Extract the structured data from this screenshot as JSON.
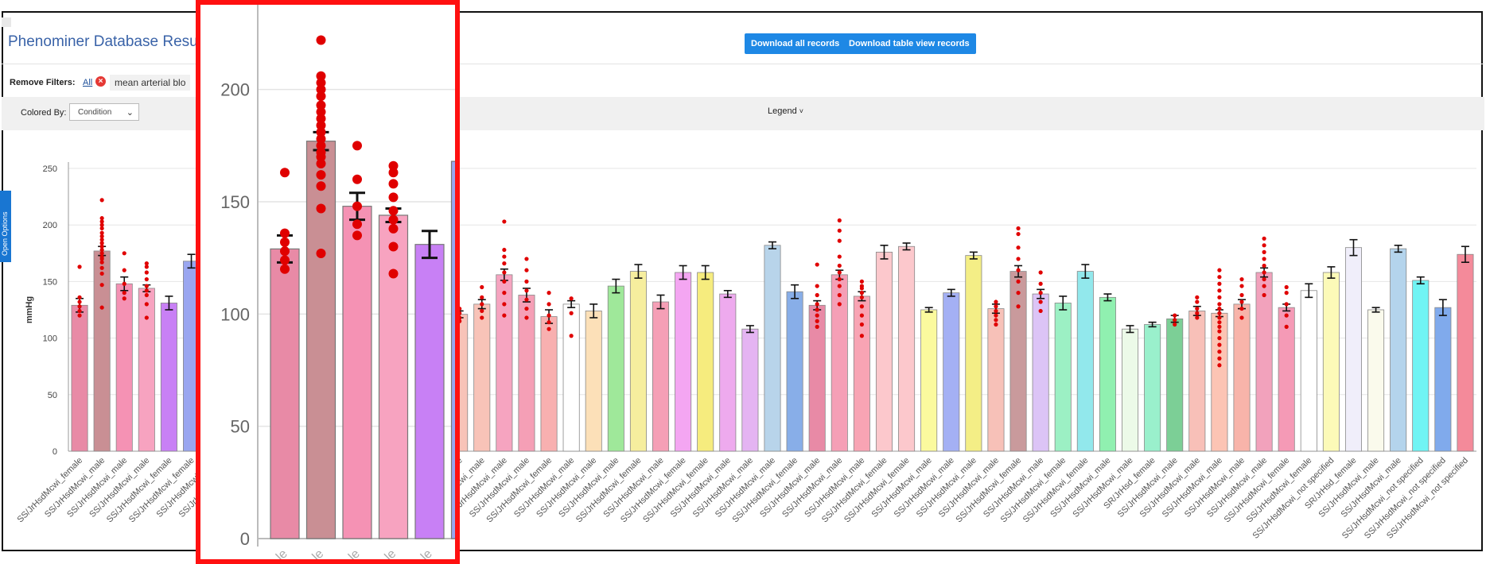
{
  "header": {
    "title": "Phenominer Database Result",
    "download_all_label": "Download all records",
    "download_table_label": "Download table view records"
  },
  "filters": {
    "label": "Remove Filters:",
    "all_label": "All",
    "remove_icon": "close-circle-icon",
    "chip_text": "mean arterial blo"
  },
  "toolbar": {
    "colored_by_label": "Colored By:",
    "colored_by_value": "Condition",
    "legend_label": "Legend",
    "legend_icon": "chevron-down-icon"
  },
  "side_tab": {
    "label": "Open Options"
  },
  "colors": {
    "accent": "#1e88e5",
    "highlight_border": "#ff1010",
    "point": "#e00000"
  },
  "chart_data": {
    "type": "bar",
    "ylabel": "mmHg",
    "ylim": [
      0,
      250
    ],
    "yticks": [
      0,
      50,
      100,
      150,
      200,
      250
    ],
    "bars": [
      {
        "label": "SS/JrHsdMcwi_female",
        "value": 129,
        "err": 6,
        "color": "#e88aa6",
        "points": [
          120,
          124,
          128,
          132,
          136,
          163
        ]
      },
      {
        "label": "SS/JrHsdMcwi_male",
        "value": 177,
        "err": 4,
        "color": "#c98f94",
        "points": [
          127,
          147,
          157,
          162,
          167,
          170,
          172,
          175,
          178,
          181,
          184,
          187,
          190,
          193,
          197,
          200,
          203,
          206,
          222
        ]
      },
      {
        "label": "SS/JrHsdMcwi_male",
        "value": 148,
        "err": 6,
        "color": "#f592b4",
        "points": [
          135,
          140,
          148,
          160,
          175
        ]
      },
      {
        "label": "SS/JrHsdMcwi_male",
        "value": 144,
        "err": 3,
        "color": "#f7a3c0",
        "points": [
          118,
          130,
          138,
          142,
          146,
          152,
          158,
          163,
          166
        ]
      },
      {
        "label": "SS/JrHsdMcwi_female",
        "value": 131,
        "err": 6,
        "color": "#c880f5",
        "points": []
      },
      {
        "label": "SS/JrHsdMcwi_female",
        "value": 168,
        "err": 6,
        "color": "#9aa6f0",
        "points": []
      },
      {
        "label": "SS/JrHsdMcwi_male",
        "value": 159,
        "err": 5,
        "color": "#5fa9a8",
        "points": []
      },
      {
        "label": "SS/JrHsdMcwi_male",
        "value": 120,
        "err": 3,
        "color": "#b8c8e8",
        "points": [
          117,
          121
        ]
      },
      {
        "label": "SS/JrHsdMcwi_male",
        "value": 125,
        "err": 3,
        "color": "#f7b7c5",
        "points": [
          118,
          122,
          130,
          137
        ]
      },
      {
        "label": "SS/JrHsdMcwi_female",
        "value": 135,
        "err": 4,
        "color": "#f8c0b8",
        "points": [
          130,
          136,
          140,
          156
        ]
      },
      {
        "label": "SS/JrHsdMcwi_male",
        "value": 131,
        "err": 3,
        "color": "#f2788f",
        "points": [
          102,
          110,
          120,
          128,
          135,
          140,
          144
        ]
      },
      {
        "label": "SR/Jr_male",
        "value": 177,
        "err": 2,
        "color": "#f8b08a",
        "points": []
      },
      {
        "label": "SS/JrHsdMcwi_male",
        "value": 113,
        "err": 2,
        "color": "#a8ecdc",
        "points": []
      },
      {
        "label": "SS/JrHsdMcwi_female",
        "value": 120,
        "err": 5,
        "color": "#f8c3b8",
        "points": [
          115,
          125,
          135
        ]
      },
      {
        "label": "SS/JrHsdMcwi_female",
        "value": 142,
        "err": 6,
        "color": "#e49ef2",
        "points": [
          120,
          128,
          136,
          144,
          152,
          158,
          165
        ]
      },
      {
        "label": "SS/JrHsdMcwi_female",
        "value": 174,
        "err": 6,
        "color": "#7be8a8",
        "points": []
      },
      {
        "label": "SS/JrHsdMcwi_male",
        "value": 172,
        "err": 3,
        "color": "#e9a4f2",
        "points": []
      },
      {
        "label": "SS/JrHsdMcwi_male",
        "value": 121,
        "err": 3,
        "color": "#f8c3b8",
        "points": [
          115,
          118,
          122,
          126
        ]
      },
      {
        "label": "SS/JrHsdMcwi_male",
        "value": 130,
        "err": 4,
        "color": "#f8c3b8",
        "points": [
          118,
          124,
          130,
          136,
          145
        ]
      },
      {
        "label": "SS/JrHsdMcwi_male",
        "value": 156,
        "err": 5,
        "color": "#f6a4c0",
        "points": [
          120,
          130,
          140,
          150,
          158,
          166,
          172,
          178,
          203
        ]
      },
      {
        "label": "SS/JrHsdMcwi_male",
        "value": 138,
        "err": 6,
        "color": "#f59fb6",
        "points": [
          118,
          126,
          134,
          142,
          150,
          160,
          170
        ]
      },
      {
        "label": "SS/JrHsdMcwi_female",
        "value": 119,
        "err": 6,
        "color": "#f8b0b0",
        "points": [
          108,
          114,
          120,
          130,
          140
        ]
      },
      {
        "label": "SS/JrHsdMcwi_male",
        "value": 130,
        "err": 3,
        "color": "#ffffff",
        "points": [
          102,
          122,
          135
        ]
      },
      {
        "label": "SS/JrHsdMcwi_male",
        "value": 124,
        "err": 6,
        "color": "#fce0b8",
        "points": []
      },
      {
        "label": "SS/JrHsdMcwi_male",
        "value": 146,
        "err": 6,
        "color": "#9fe89a",
        "points": []
      },
      {
        "label": "SS/JrHsdMcwi_female",
        "value": 159,
        "err": 6,
        "color": "#f6ee9e",
        "points": []
      },
      {
        "label": "SS/JrHsdMcwi_male",
        "value": 132,
        "err": 6,
        "color": "#f59fb6",
        "points": []
      },
      {
        "label": "SS/JrHsdMcwi_female",
        "value": 158,
        "err": 6,
        "color": "#f4a6f2",
        "points": []
      },
      {
        "label": "SS/JrHsdMcwi_female",
        "value": 158,
        "err": 6,
        "color": "#f6ec7e",
        "points": []
      },
      {
        "label": "SS/JrHsdMcwi_male",
        "value": 139,
        "err": 3,
        "color": "#eeaaee",
        "points": []
      },
      {
        "label": "SS/JrHsdMcwi_male",
        "value": 108,
        "err": 3,
        "color": "#e4b4f2",
        "points": []
      },
      {
        "label": "SS/JrHsdMcwi_male",
        "value": 182,
        "err": 3,
        "color": "#b8d4ea",
        "points": []
      },
      {
        "label": "SS/JrHsdMcwi_female",
        "value": 141,
        "err": 6,
        "color": "#88aee8",
        "points": []
      },
      {
        "label": "SS/JrHsdMcwi_male",
        "value": 129,
        "err": 4,
        "color": "#e88aa6",
        "points": [
          110,
          115,
          120,
          125,
          130,
          138,
          146,
          165
        ]
      },
      {
        "label": "SS/JrHsdMcwi_male",
        "value": 156,
        "err": 4,
        "color": "#f59fb6",
        "points": [
          130,
          138,
          146,
          152,
          158,
          164,
          172,
          186,
          195,
          204
        ]
      },
      {
        "label": "SS/JrHsdMcwi_male",
        "value": 137,
        "err": 4,
        "color": "#f8a4b4",
        "points": [
          102,
          112,
          120,
          128,
          136,
          140,
          144,
          146,
          150
        ]
      },
      {
        "label": "SS/JrHsdMcwi_female",
        "value": 176,
        "err": 6,
        "color": "#fcc8cc",
        "points": []
      },
      {
        "label": "SS/JrHsdMcwi_female",
        "value": 181,
        "err": 3,
        "color": "#fcc8cc",
        "points": []
      },
      {
        "label": "SS/JrHsdMcwi_male",
        "value": 125,
        "err": 2,
        "color": "#fbfa9e",
        "points": []
      },
      {
        "label": "SS/JrHsdMcwi_male",
        "value": 140,
        "err": 3,
        "color": "#a4b0f4",
        "points": []
      },
      {
        "label": "SS/JrHsdMcwi_male",
        "value": 173,
        "err": 3,
        "color": "#f4ee86",
        "points": []
      },
      {
        "label": "SS/JrHsdMcwi_male",
        "value": 126,
        "err": 4,
        "color": "#f7c1b8",
        "points": [
          112,
          116,
          120,
          124,
          128,
          132
        ]
      },
      {
        "label": "SS/JrHsdMcwi_female",
        "value": 159,
        "err": 5,
        "color": "#c99a9c",
        "points": [
          128,
          140,
          150,
          160,
          170,
          180,
          192,
          197
        ]
      },
      {
        "label": "SS/JrHsdMcwi_male",
        "value": 139,
        "err": 4,
        "color": "#dcc4f6",
        "points": [
          124,
          132,
          140,
          148,
          158
        ]
      },
      {
        "label": "SS/JrHsdMcwi_female",
        "value": 131,
        "err": 6,
        "color": "#9cf0c4",
        "points": []
      },
      {
        "label": "SS/JrHsdMcwi_female",
        "value": 159,
        "err": 6,
        "color": "#92e8ec",
        "points": []
      },
      {
        "label": "SS/JrHsdMcwi_male",
        "value": 136,
        "err": 3,
        "color": "#90f0b0",
        "points": []
      },
      {
        "label": "SS/JrHsdMcwi_male",
        "value": 108,
        "err": 3,
        "color": "#ecfae8",
        "points": []
      },
      {
        "label": "SR/JrHsd_female",
        "value": 112,
        "err": 2,
        "color": "#9af0cc",
        "points": []
      },
      {
        "label": "SS/JrHsdMcwi_male",
        "value": 117,
        "err": 3,
        "color": "#7ccf96",
        "points": [
          112,
          116,
          120
        ]
      },
      {
        "label": "SS/JrHsdMcwi_male",
        "value": 124,
        "err": 4,
        "color": "#f8c0b8",
        "points": [
          118,
          122,
          126,
          132,
          136
        ]
      },
      {
        "label": "SS/JrHsdMcwi_male",
        "value": 122,
        "err": 3,
        "color": "#fcc4b4",
        "points": [
          76,
          82,
          88,
          94,
          100,
          106,
          110,
          114,
          118,
          122,
          126,
          130,
          136,
          142,
          148,
          154,
          160
        ]
      },
      {
        "label": "SS/JrHsdMcwi_male",
        "value": 130,
        "err": 4,
        "color": "#f8b4aa",
        "points": [
          118,
          126,
          132,
          138,
          146,
          152
        ]
      },
      {
        "label": "SS/JrHsdMcwi_male",
        "value": 158,
        "err": 4,
        "color": "#f2a2bc",
        "points": [
          138,
          146,
          152,
          158,
          164,
          170,
          176,
          182,
          188
        ]
      },
      {
        "label": "SS/JrHsdMcwi_female",
        "value": 127,
        "err": 3,
        "color": "#f59ab6",
        "points": [
          110,
          120,
          130,
          140,
          145
        ]
      },
      {
        "label": "SS/JrHsdMcwi_female",
        "value": 142,
        "err": 6,
        "color": "#ffffff",
        "points": []
      },
      {
        "label": "SS/JrHsdMcwi_not specified",
        "value": 158,
        "err": 5,
        "color": "#fcfab8",
        "points": []
      },
      {
        "label": "SR/JrHsd_female",
        "value": 180,
        "err": 7,
        "color": "#f0eefa",
        "points": []
      },
      {
        "label": "SS/JrHsdMcwi_male",
        "value": 125,
        "err": 2,
        "color": "#fafaec",
        "points": []
      },
      {
        "label": "SS/JrHsdMcwi_male",
        "value": 179,
        "err": 3,
        "color": "#b4d4ec",
        "points": []
      },
      {
        "label": "SS/JrHsdMcwi_not specified",
        "value": 151,
        "err": 3,
        "color": "#70f4f4",
        "points": []
      },
      {
        "label": "SS/JrHsdMcwi_not specified",
        "value": 127,
        "err": 7,
        "color": "#80aaec",
        "points": []
      },
      {
        "label": "SS/JrHsdMcwi_not specified",
        "value": 174,
        "err": 7,
        "color": "#f48a9a",
        "points": []
      }
    ],
    "zoom": {
      "ylim": [
        0,
        225
      ],
      "yticks": [
        0,
        50,
        100,
        150,
        200
      ],
      "bar_indices": [
        0,
        1,
        2,
        3,
        4,
        5
      ],
      "xtick_text": "le"
    }
  }
}
